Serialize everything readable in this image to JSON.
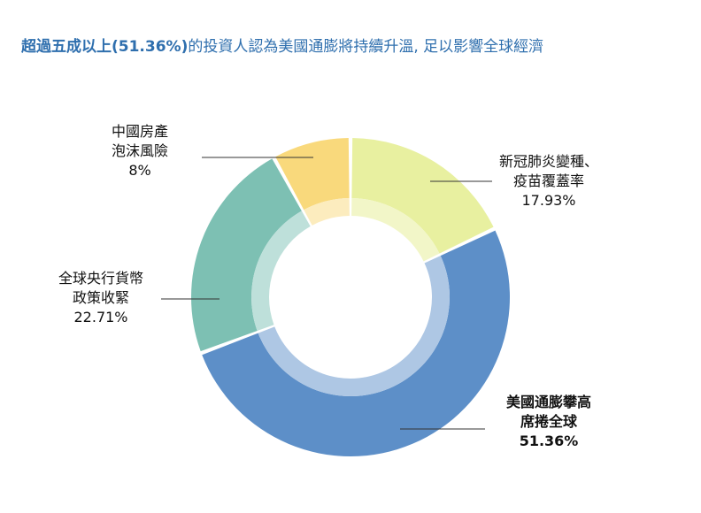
{
  "title": {
    "highlight": "超過五成以上(51.36%)",
    "rest": "的投資人認為美國通膨將持續升溫, 足以影響全球經濟"
  },
  "chart_data": {
    "type": "pie",
    "donut": true,
    "title": "超過五成以上(51.36%)的投資人認為美國通膨將持續升溫, 足以影響全球經濟",
    "slices": [
      {
        "label_lines": [
          "新冠肺炎變種、",
          "疫苗覆蓋率"
        ],
        "value_label": "17.93%",
        "value": 17.93,
        "color": "#e8f0a0",
        "inner_color": "#f2f6c8",
        "emphasis": false
      },
      {
        "label_lines": [
          "美國通膨攀高",
          "席捲全球"
        ],
        "value_label": "51.36%",
        "value": 51.36,
        "color": "#5d8fc8",
        "inner_color": "#aec7e4",
        "emphasis": true
      },
      {
        "label_lines": [
          "全球央行貨幣",
          "政策收緊"
        ],
        "value_label": "22.71%",
        "value": 22.71,
        "color": "#7dc0b3",
        "inner_color": "#bee0da",
        "emphasis": false
      },
      {
        "label_lines": [
          "中國房產",
          "泡沫風險"
        ],
        "value_label": "8%",
        "value": 8,
        "color": "#f9d97c",
        "inner_color": "#fcecbe",
        "emphasis": false
      }
    ],
    "start_angle_deg": 0,
    "direction": "clockwise"
  }
}
